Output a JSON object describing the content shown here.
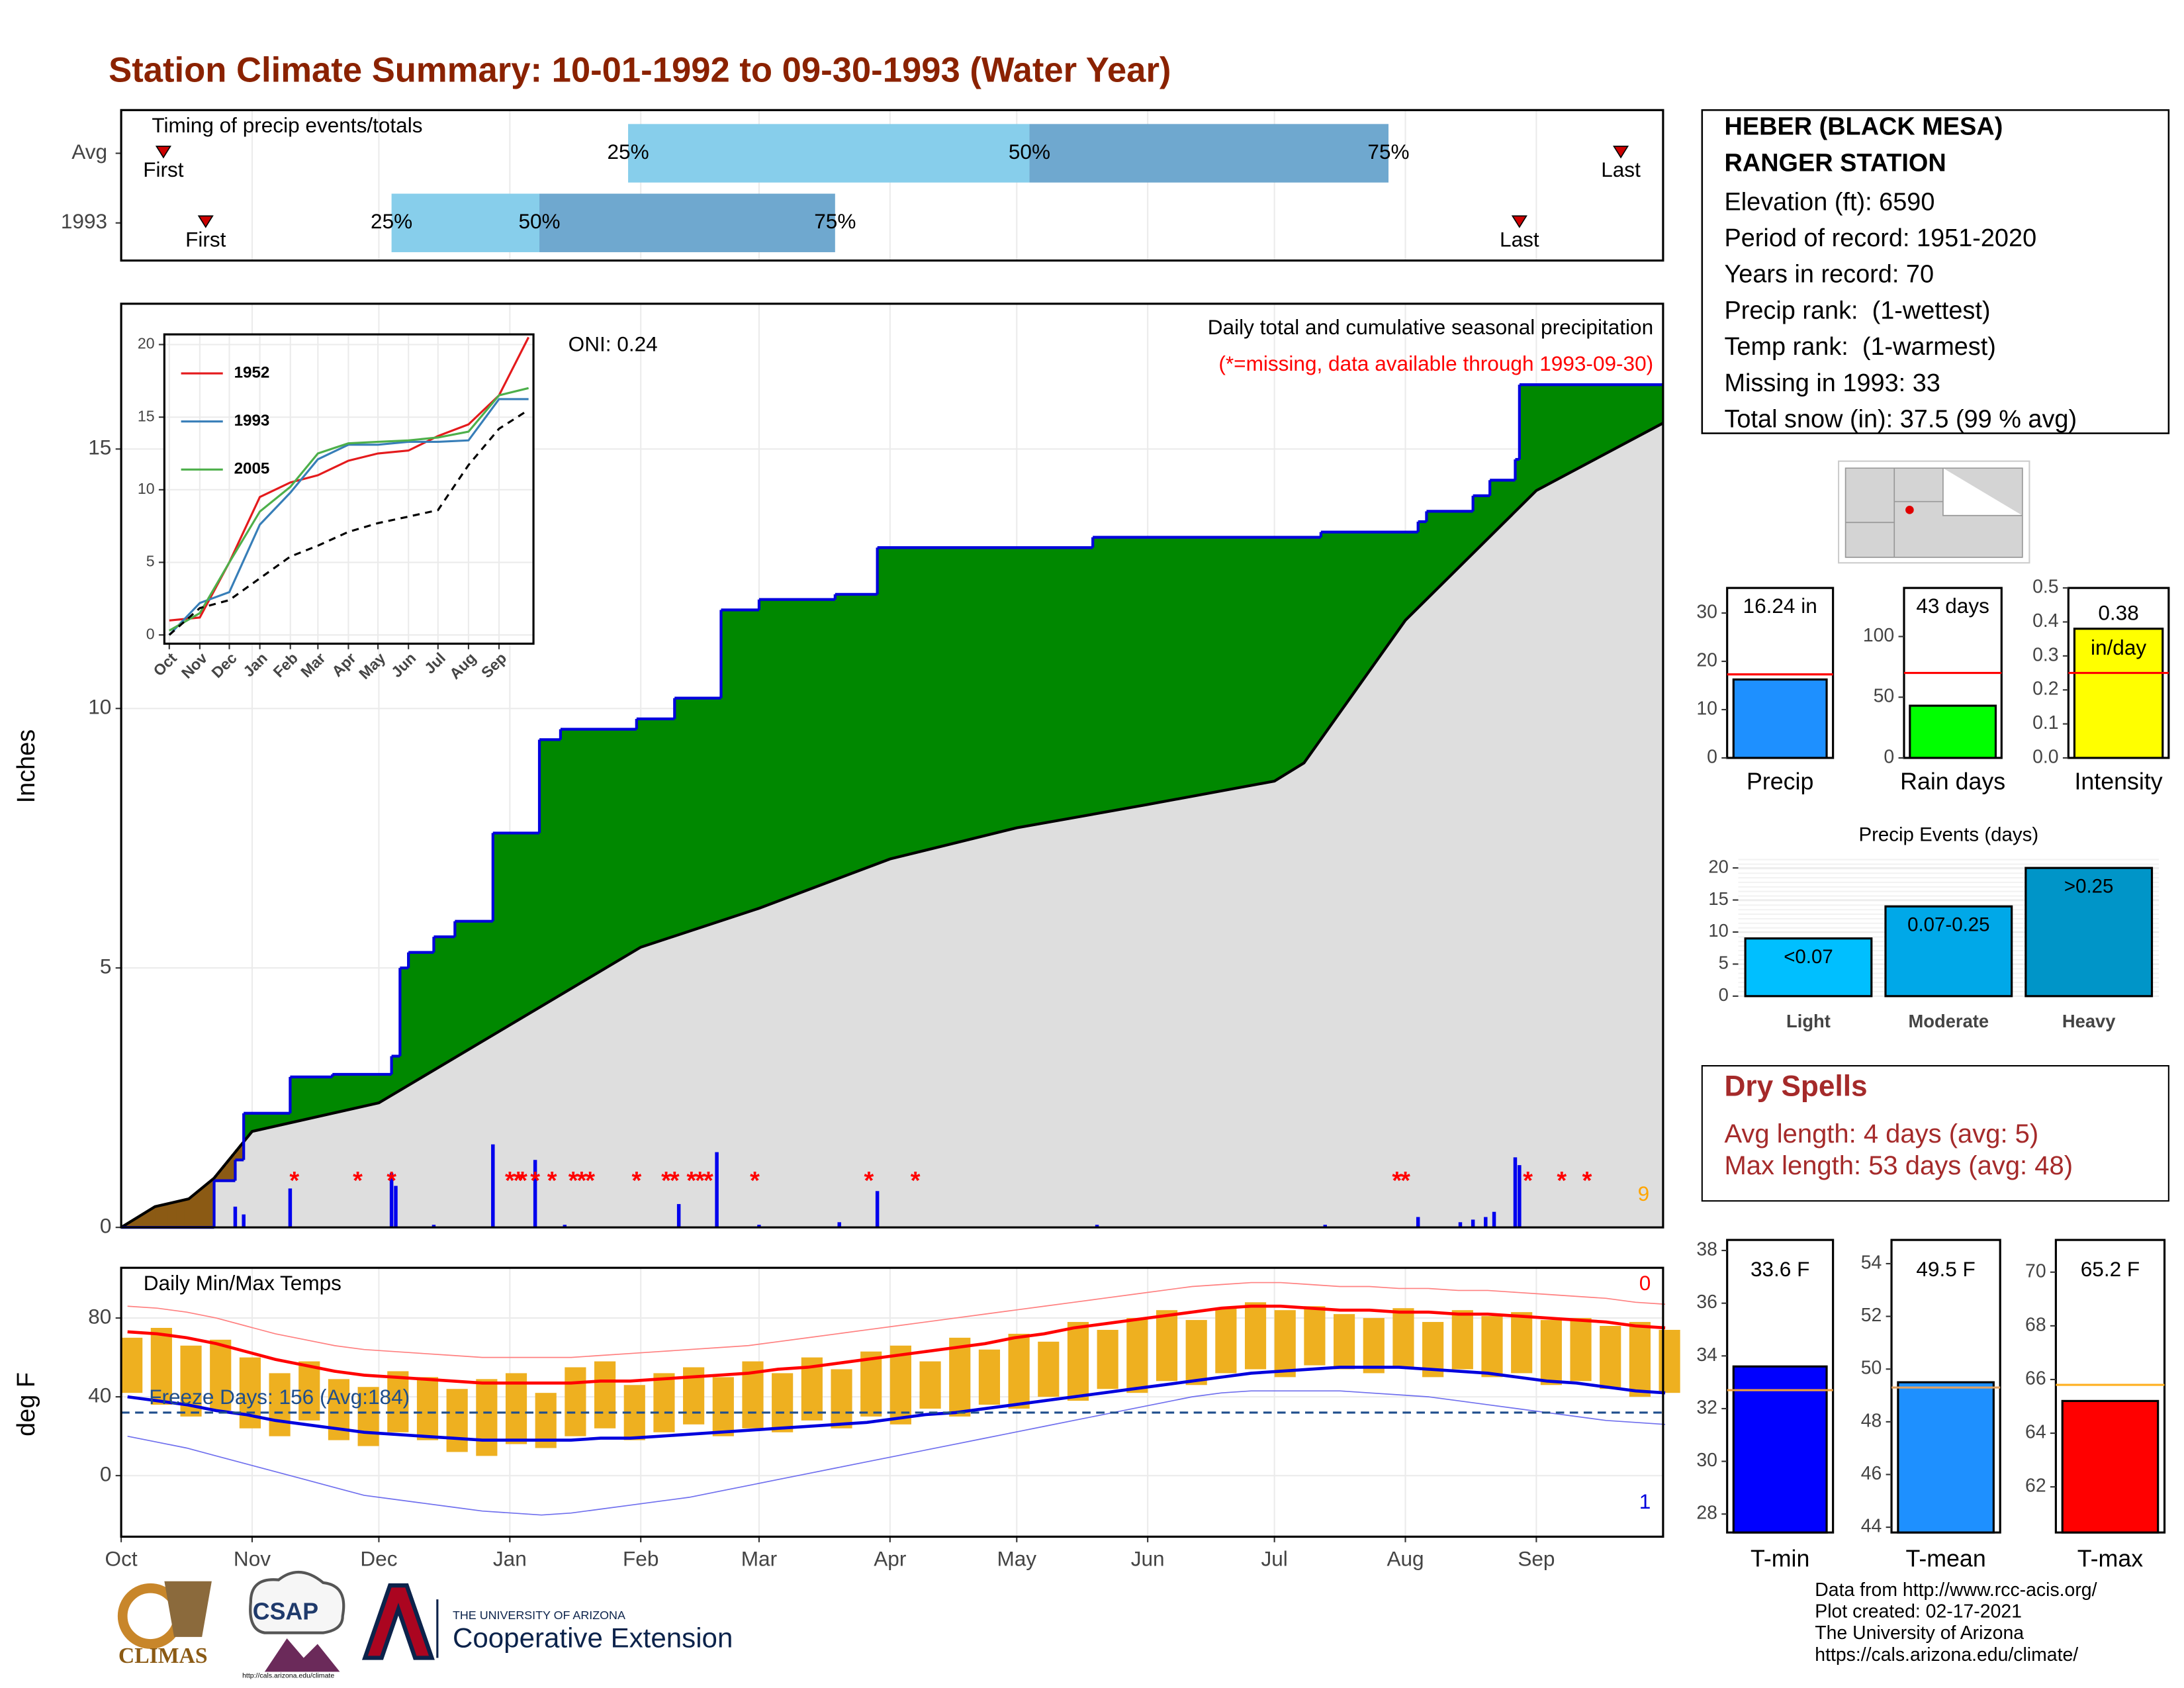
{
  "title": "Station Climate Summary: 10-01-1992 to 09-30-1993 (Water Year)",
  "station": {
    "lines": [
      "HEBER (BLACK MESA)",
      "RANGER STATION",
      "Elevation (ft): 6590",
      "Period of record: 1951-2020",
      "Years in record: 70",
      "Precip rank:  (1-wettest)",
      "Temp rank:  (1-warmest)",
      "Missing in 1993: 33",
      "Total snow (in): 37.5 (99 % avg)"
    ]
  },
  "dry_spells": {
    "title": "Dry Spells",
    "lines": [
      "Avg length: 4 days (avg: 5)",
      "Max length: 53 days (avg: 48)"
    ]
  },
  "footer": {
    "lines": [
      "Data from http://www.rcc-acis.org/",
      "Plot created: 02-17-2021",
      "The University of Arizona",
      "https://cals.arizona.edu/climate/"
    ]
  },
  "logos": {
    "climas": "CLIMAS",
    "csap": "CSAP",
    "csap_url": "http://cals.arizona.edu/climate",
    "university": "THE UNIVERSITY OF ARIZONA",
    "extension": "Cooperative Extension"
  },
  "chart_data": [
    {
      "type": "timing",
      "title": "Timing of precip events/totals",
      "xlim": [
        0,
        365
      ],
      "xticks": [
        0,
        31,
        61,
        92,
        123,
        151,
        182,
        212,
        243,
        273,
        304,
        335
      ],
      "point_labels": [
        "First",
        "25%",
        "50%",
        "75%",
        "Last"
      ],
      "colors": [
        "#87ceeb",
        "#6fa8cf",
        "#cc0000"
      ],
      "rows": [
        {
          "name": "Avg",
          "first": 10,
          "q25": 120,
          "q50": 215,
          "q75": 300,
          "last": 355
        },
        {
          "name": 1993,
          "first": 20,
          "q25": 64,
          "q50": 99,
          "q75": 169,
          "last": 331
        }
      ]
    },
    {
      "type": "area",
      "ylabel": "Inches",
      "subtitle": "Daily total and cumulative seasonal precipitation",
      "note": "(*=missing, data available through 1993-09-30)",
      "oni": "ONI: 0.24",
      "corner_note": 9,
      "xlim": [
        0,
        365
      ],
      "xticks": [
        0,
        31,
        61,
        92,
        123,
        151,
        182,
        212,
        243,
        273,
        304,
        335
      ],
      "ylim": [
        0,
        17.8
      ],
      "yticks": [
        0,
        5,
        10,
        15
      ],
      "grid": true,
      "deficit_color": "#8b5a14",
      "series": [
        {
          "x": [
            0,
            22,
            27,
            29,
            40,
            50,
            64,
            66,
            68,
            74,
            79,
            88,
            99,
            104,
            122,
            131,
            142,
            151,
            169,
            179,
            230,
            284,
            307,
            309,
            320,
            324,
            330,
            331
          ],
          "values": [
            0,
            0.9,
            1.3,
            2.2,
            2.9,
            2.95,
            3.3,
            5.0,
            5.3,
            5.6,
            5.9,
            7.6,
            9.4,
            9.6,
            9.8,
            10.2,
            11.9,
            12.1,
            12.2,
            13.1,
            13.3,
            13.4,
            13.6,
            13.8,
            14.1,
            14.4,
            14.8,
            16.24
          ],
          "color": "#008800",
          "line_color": "#0000dd",
          "step": true
        },
        {
          "x": [
            0,
            8,
            16,
            22,
            31,
            61,
            92,
            123,
            151,
            182,
            212,
            243,
            273,
            280,
            304,
            335,
            365
          ],
          "values": [
            0,
            0.4,
            0.55,
            0.95,
            1.85,
            2.4,
            3.9,
            5.4,
            6.15,
            7.1,
            7.7,
            8.15,
            8.6,
            8.95,
            11.7,
            14.2,
            15.5
          ],
          "color": "#dedede",
          "line_color": "#000000"
        }
      ],
      "daily": {
        "x": [
          27,
          29,
          40,
          64,
          65,
          74,
          88,
          98,
          105,
          132,
          141,
          151,
          170,
          179,
          231,
          285,
          307,
          317,
          320,
          323,
          325,
          330,
          331
        ],
        "values": [
          0.4,
          0.25,
          0.75,
          1.05,
          0.8,
          0.05,
          1.6,
          1.3,
          0.05,
          0.45,
          1.45,
          0.05,
          0.1,
          0.7,
          0.05,
          0.05,
          0.2,
          0.1,
          0.15,
          0.2,
          0.3,
          1.35,
          1.2
        ],
        "color": "#0000ee"
      },
      "missing": {
        "symbol": "*",
        "value": 0.95,
        "color": "#ff0000",
        "x": [
          41,
          56,
          64,
          92,
          94,
          95,
          98,
          102,
          107,
          109,
          111,
          122,
          129,
          131,
          135,
          137,
          139,
          150,
          177,
          188,
          302,
          304,
          333,
          341,
          347
        ]
      }
    },
    {
      "type": "line",
      "xlim": [
        -5,
        370
      ],
      "ylim": [
        -0.6,
        20.7
      ],
      "yticks": [
        0,
        5,
        10,
        15,
        20
      ],
      "grid": true,
      "xticks": [
        {
          "value": 0,
          "label": "Oct"
        },
        {
          "value": 31,
          "label": "Nov"
        },
        {
          "value": 61,
          "label": "Dec"
        },
        {
          "value": 92,
          "label": "Jan"
        },
        {
          "value": 123,
          "label": "Feb"
        },
        {
          "value": 151,
          "label": "Mar"
        },
        {
          "value": 182,
          "label": "Apr"
        },
        {
          "value": 212,
          "label": "May"
        },
        {
          "value": 243,
          "label": "Jun"
        },
        {
          "value": 273,
          "label": "Jul"
        },
        {
          "value": 304,
          "label": "Aug"
        },
        {
          "value": 335,
          "label": "Sep"
        }
      ],
      "x": [
        0,
        31,
        61,
        92,
        123,
        151,
        182,
        212,
        243,
        273,
        304,
        335,
        365
      ],
      "series": [
        {
          "name": 1952,
          "color": "#e41a1c",
          "values": [
            1.0,
            1.2,
            5.0,
            9.5,
            10.5,
            11.0,
            12.0,
            12.5,
            12.7,
            13.7,
            14.5,
            16.5,
            20.5
          ]
        },
        {
          "name": 1993,
          "color": "#377eb8",
          "values": [
            0,
            2.2,
            2.95,
            7.6,
            9.8,
            12.1,
            13.1,
            13.1,
            13.3,
            13.3,
            13.4,
            16.24,
            16.24
          ]
        },
        {
          "name": 2005,
          "color": "#4daf4a",
          "values": [
            0.3,
            1.5,
            5.0,
            8.5,
            10.2,
            12.5,
            13.2,
            13.3,
            13.4,
            13.6,
            14.0,
            16.5,
            17.0
          ]
        },
        {
          "color": "#000000",
          "dash": true,
          "values": [
            0,
            1.85,
            2.4,
            3.9,
            5.4,
            6.15,
            7.1,
            7.7,
            8.15,
            8.6,
            11.7,
            14.2,
            15.5
          ]
        }
      ]
    },
    {
      "type": "bar",
      "categories": [
        "Precip"
      ],
      "values": [
        16.24
      ],
      "value_labels": [
        "16.24 in"
      ],
      "color": "#1e90ff",
      "reference": 17.3,
      "reference_color": "#ff0000",
      "ylim": [
        0,
        35.2
      ],
      "yticks": [
        0,
        10,
        20,
        30
      ]
    },
    {
      "type": "bar",
      "categories": [
        "Rain days"
      ],
      "values": [
        43
      ],
      "value_labels": [
        "43 days"
      ],
      "color": "#00ff00",
      "reference": 70,
      "reference_color": "#ff0000",
      "ylim": [
        0,
        140
      ],
      "yticks": [
        0,
        50,
        100
      ]
    },
    {
      "type": "bar",
      "categories": [
        "Intensity"
      ],
      "values": [
        0.38
      ],
      "value_labels": [
        "0.38"
      ],
      "units": "in/day",
      "color": "#ffff00",
      "reference": 0.25,
      "reference_color": "#ff0000",
      "ylim": [
        0,
        0.5
      ],
      "yticks": [
        {
          "value": 0,
          "label": "0.0"
        },
        0.1,
        0.2,
        0.3,
        0.4,
        0.5
      ]
    },
    {
      "type": "bar",
      "title": "Precip Events (days)",
      "categories": [
        "Light",
        "Moderate",
        "Heavy"
      ],
      "values": [
        9,
        14,
        20
      ],
      "annotations": [
        "<0.07",
        "0.07-0.25",
        ">0.25"
      ],
      "colors": [
        "#00bfff",
        "#00a8e8",
        "#0095c8"
      ],
      "ylim": [
        0,
        21.3
      ],
      "yticks": [
        0,
        5,
        10,
        15,
        20
      ],
      "grid": true
    },
    {
      "type": "range",
      "title": "Daily Min/Max Temps",
      "ylabel": "deg F",
      "freeze_label": "Freeze Days: 156 (Avg:184)",
      "freeze_threshold": 32,
      "freeze_color": "#1f4e8c",
      "record_high_count": 0,
      "record_low_count": 1,
      "xlim": [
        0,
        365
      ],
      "xticks": [
        {
          "value": 0,
          "label": "Oct"
        },
        {
          "value": 31,
          "label": "Nov"
        },
        {
          "value": 61,
          "label": "Dec"
        },
        {
          "value": 92,
          "label": "Jan"
        },
        {
          "value": 123,
          "label": "Feb"
        },
        {
          "value": 151,
          "label": "Mar"
        },
        {
          "value": 182,
          "label": "Apr"
        },
        {
          "value": 212,
          "label": "May"
        },
        {
          "value": 243,
          "label": "Jun"
        },
        {
          "value": 273,
          "label": "Jul"
        },
        {
          "value": 304,
          "label": "Aug"
        },
        {
          "value": 335,
          "label": "Sep"
        }
      ],
      "ylim": [
        -31,
        105.5
      ],
      "yticks": [
        0,
        40,
        80
      ],
      "grid": true,
      "x": [
        0,
        7,
        14,
        21,
        28,
        35,
        42,
        49,
        56,
        63,
        70,
        77,
        84,
        91,
        98,
        105,
        112,
        119,
        126,
        133,
        140,
        147,
        154,
        161,
        168,
        175,
        182,
        189,
        196,
        203,
        210,
        217,
        224,
        231,
        238,
        245,
        252,
        259,
        266,
        273,
        280,
        287,
        294,
        301,
        308,
        315,
        322,
        329,
        336,
        343,
        350,
        357,
        364
      ],
      "observed": {
        "color": "#eeb020",
        "high": [
          70,
          75,
          66,
          69,
          60,
          52,
          58,
          49,
          45,
          53,
          50,
          44,
          49,
          52,
          42,
          55,
          58,
          46,
          52,
          55,
          50,
          58,
          52,
          60,
          54,
          63,
          66,
          58,
          70,
          64,
          72,
          68,
          78,
          74,
          80,
          84,
          79,
          85,
          88,
          84,
          86,
          82,
          80,
          85,
          78,
          84,
          81,
          83,
          79,
          80,
          76,
          78,
          74
        ],
        "low": [
          42,
          36,
          30,
          33,
          24,
          20,
          28,
          18,
          15,
          22,
          18,
          12,
          10,
          16,
          14,
          20,
          24,
          18,
          22,
          26,
          20,
          24,
          22,
          28,
          24,
          30,
          26,
          34,
          30,
          36,
          34,
          40,
          38,
          44,
          42,
          48,
          46,
          52,
          54,
          50,
          56,
          54,
          52,
          55,
          50,
          54,
          50,
          52,
          46,
          48,
          44,
          40,
          42
        ]
      },
      "average": {
        "high_color": "#ff0000",
        "low_color": "#0000dd",
        "high": [
          73,
          72,
          70,
          67,
          63,
          59,
          56,
          53,
          51,
          50,
          49,
          48,
          47,
          47,
          47,
          47,
          48,
          48,
          49,
          50,
          51,
          52,
          54,
          55,
          57,
          59,
          61,
          63,
          65,
          67,
          70,
          72,
          75,
          77,
          79,
          81,
          83,
          85,
          86,
          86,
          85,
          84,
          84,
          83,
          83,
          82,
          82,
          81,
          80,
          79,
          78,
          76,
          75
        ],
        "low": [
          40,
          38,
          36,
          33,
          31,
          28,
          26,
          24,
          22,
          21,
          20,
          19,
          18,
          18,
          18,
          18,
          19,
          19,
          20,
          21,
          22,
          23,
          24,
          25,
          26,
          27,
          29,
          31,
          32,
          34,
          36,
          38,
          40,
          42,
          44,
          46,
          48,
          50,
          52,
          53,
          54,
          55,
          55,
          55,
          54,
          53,
          52,
          50,
          48,
          47,
          45,
          43,
          42
        ]
      },
      "record": {
        "high_color": "#ff8080",
        "low_color": "#7070ee",
        "high": [
          86,
          85,
          83,
          80,
          76,
          72,
          69,
          66,
          64,
          63,
          62,
          61,
          60,
          60,
          60,
          60,
          61,
          62,
          63,
          64,
          65,
          66,
          68,
          70,
          72,
          74,
          76,
          78,
          80,
          82,
          84,
          86,
          88,
          90,
          92,
          94,
          96,
          97,
          98,
          98,
          97,
          96,
          96,
          95,
          95,
          94,
          94,
          93,
          92,
          91,
          90,
          88,
          87
        ],
        "low": [
          20,
          17,
          14,
          10,
          6,
          2,
          -2,
          -6,
          -10,
          -12,
          -14,
          -16,
          -18,
          -19,
          -20,
          -19,
          -17,
          -15,
          -13,
          -11,
          -8,
          -5,
          -2,
          1,
          4,
          7,
          10,
          13,
          16,
          19,
          22,
          25,
          28,
          31,
          34,
          37,
          40,
          42,
          43,
          43,
          43,
          43,
          42,
          41,
          40,
          38,
          36,
          34,
          32,
          30,
          28,
          27,
          26
        ]
      }
    },
    {
      "type": "bar",
      "categories": [
        "T-min"
      ],
      "values": [
        33.6
      ],
      "value_labels": [
        "33.6 F"
      ],
      "color": "#0000ff",
      "reference": 32.7,
      "reference_color": "#f0a040",
      "ylim": [
        27.3,
        38.4
      ],
      "yticks": [
        28,
        30,
        32,
        34,
        36,
        38
      ]
    },
    {
      "type": "bar",
      "categories": [
        "T-mean"
      ],
      "values": [
        49.5
      ],
      "value_labels": [
        "49.5 F"
      ],
      "color": "#1e90ff",
      "reference": 49.3,
      "reference_color": "#e0a060",
      "ylim": [
        43.8,
        54.9
      ],
      "yticks": [
        44,
        46,
        48,
        50,
        52,
        54
      ]
    },
    {
      "type": "bar",
      "categories": [
        "T-max"
      ],
      "values": [
        65.2
      ],
      "value_labels": [
        "65.2 F"
      ],
      "color": "#ff0000",
      "reference": 65.8,
      "reference_color": "#ffb020",
      "ylim": [
        60.3,
        71.2
      ],
      "yticks": [
        62,
        64,
        66,
        68,
        70
      ]
    }
  ]
}
